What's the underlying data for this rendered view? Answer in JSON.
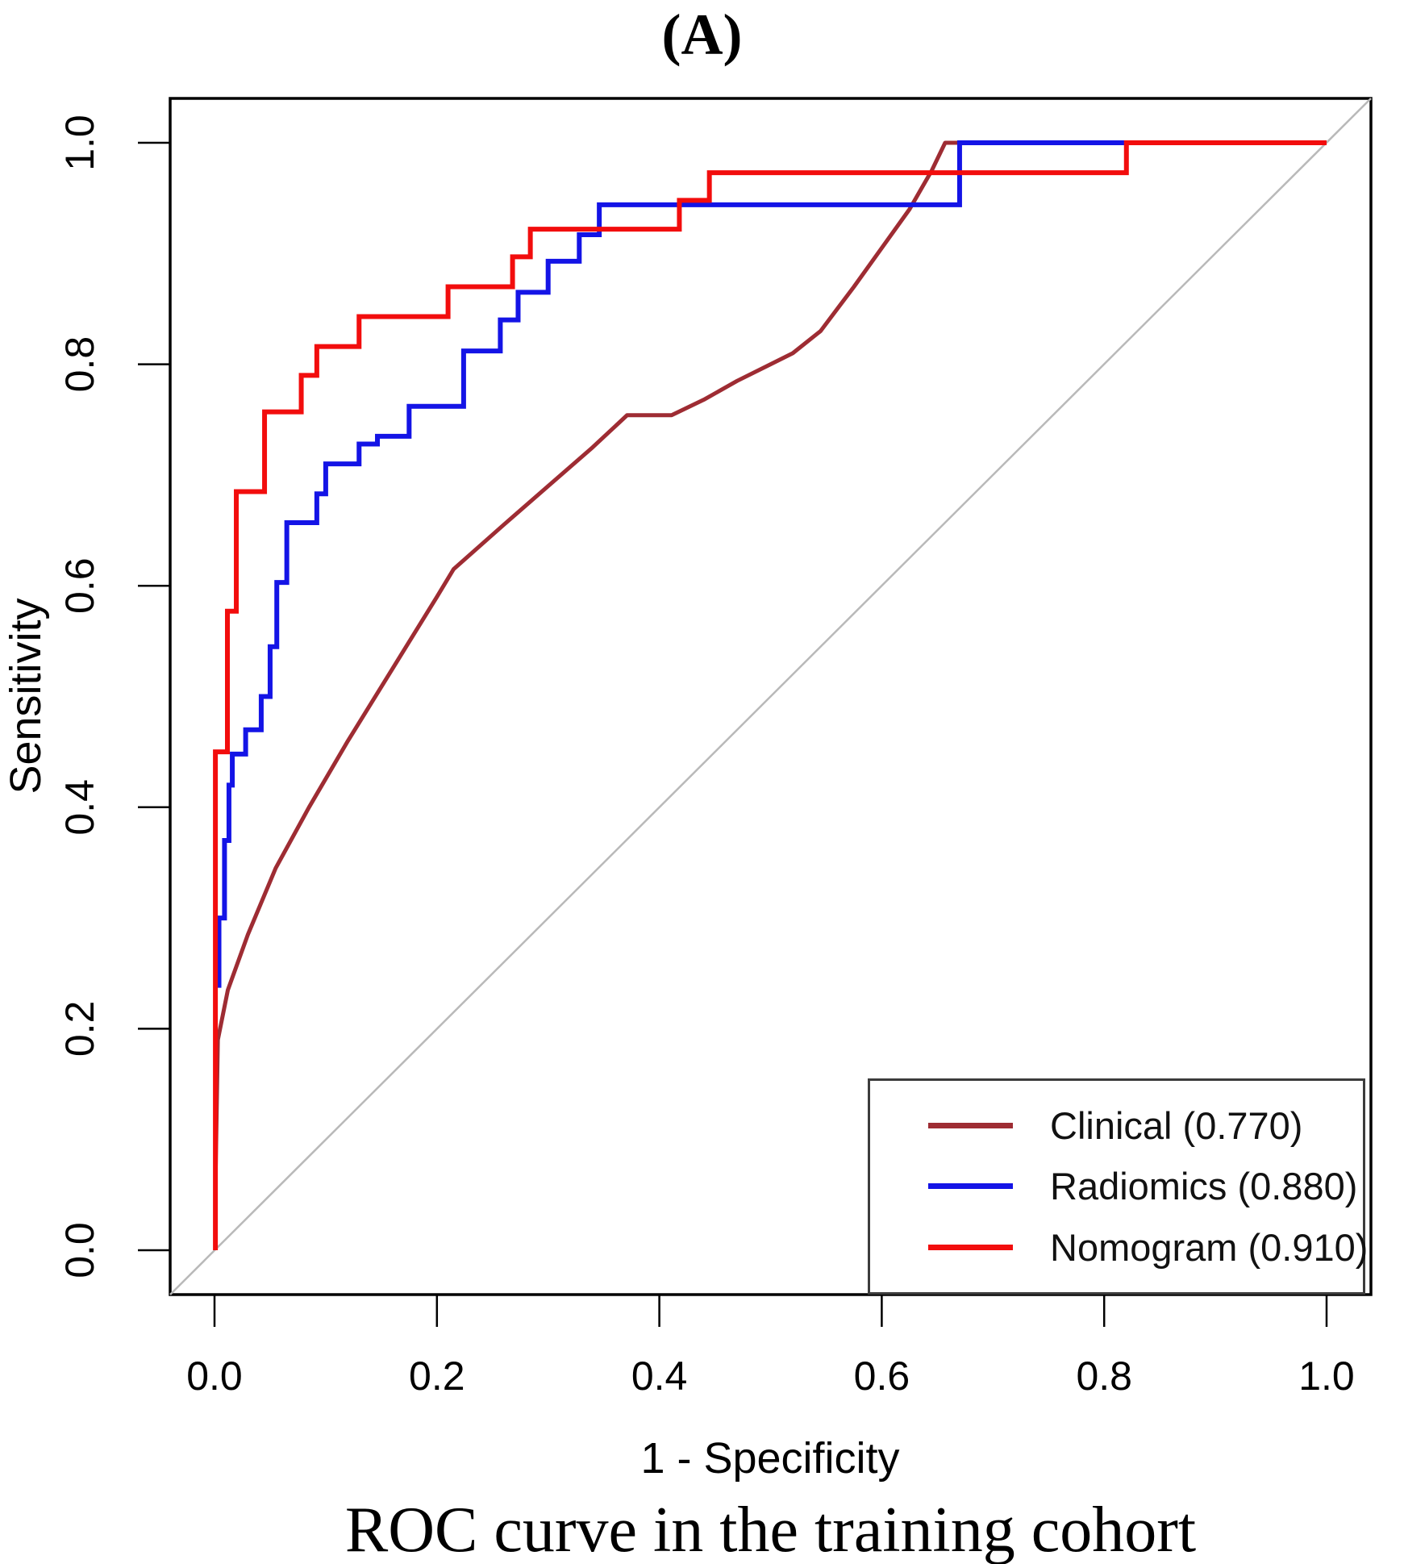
{
  "title": "(A)",
  "caption": "ROC curve in the training cohort",
  "colors": {
    "axis": "#000000",
    "diagonal_reference": "#b9b9b9",
    "background": "#ffffff",
    "legend_border": "#3c3c3c"
  },
  "chart_data": {
    "type": "line",
    "subtype": "roc-step-curves",
    "title": "(A)",
    "xlabel": "1 - Specificity",
    "ylabel": "Sensitivity",
    "xlim": [
      0,
      1
    ],
    "ylim": [
      0,
      1
    ],
    "grid": false,
    "diagonal_reference": true,
    "legend_position": "bottom-right",
    "xticks": [
      0.0,
      0.2,
      0.4,
      0.6,
      0.8,
      1.0
    ],
    "yticks": [
      0.0,
      0.2,
      0.4,
      0.6,
      0.8,
      1.0
    ],
    "xtick_labels": [
      "0.0",
      "0.2",
      "0.4",
      "0.6",
      "0.8",
      "1.0"
    ],
    "ytick_labels": [
      "0.0",
      "0.2",
      "0.4",
      "0.6",
      "0.8",
      "1.0"
    ],
    "series": [
      {
        "name": "Clinical (0.770)",
        "auc": 0.77,
        "color": "#9e2c33",
        "stroke_width": 5,
        "points": [
          [
            0.001,
            0.07
          ],
          [
            0.003,
            0.19
          ],
          [
            0.012,
            0.235
          ],
          [
            0.03,
            0.285
          ],
          [
            0.055,
            0.345
          ],
          [
            0.085,
            0.4
          ],
          [
            0.12,
            0.46
          ],
          [
            0.16,
            0.525
          ],
          [
            0.2,
            0.59
          ],
          [
            0.215,
            0.615
          ],
          [
            0.26,
            0.655
          ],
          [
            0.3,
            0.69
          ],
          [
            0.34,
            0.725
          ],
          [
            0.371,
            0.754
          ],
          [
            0.411,
            0.754
          ],
          [
            0.44,
            0.768
          ],
          [
            0.47,
            0.785
          ],
          [
            0.5,
            0.8
          ],
          [
            0.52,
            0.81
          ],
          [
            0.545,
            0.83
          ],
          [
            0.575,
            0.87
          ],
          [
            0.6,
            0.905
          ],
          [
            0.625,
            0.94
          ],
          [
            0.645,
            0.975
          ],
          [
            0.657,
            1.0
          ],
          [
            1.0,
            1.0
          ]
        ]
      },
      {
        "name": "Radiomics (0.880)",
        "auc": 0.88,
        "color": "#1414e6",
        "stroke_width": 6,
        "points": [
          [
            0.004,
            0.237
          ],
          [
            0.004,
            0.3
          ],
          [
            0.009,
            0.3
          ],
          [
            0.009,
            0.37
          ],
          [
            0.013,
            0.37
          ],
          [
            0.013,
            0.42
          ],
          [
            0.016,
            0.42
          ],
          [
            0.016,
            0.448
          ],
          [
            0.028,
            0.448
          ],
          [
            0.028,
            0.47
          ],
          [
            0.042,
            0.47
          ],
          [
            0.042,
            0.5
          ],
          [
            0.05,
            0.5
          ],
          [
            0.05,
            0.545
          ],
          [
            0.056,
            0.545
          ],
          [
            0.056,
            0.603
          ],
          [
            0.065,
            0.603
          ],
          [
            0.065,
            0.657
          ],
          [
            0.092,
            0.657
          ],
          [
            0.092,
            0.683
          ],
          [
            0.1,
            0.683
          ],
          [
            0.1,
            0.71
          ],
          [
            0.13,
            0.71
          ],
          [
            0.13,
            0.728
          ],
          [
            0.1465,
            0.728
          ],
          [
            0.1465,
            0.735
          ],
          [
            0.175,
            0.735
          ],
          [
            0.175,
            0.762
          ],
          [
            0.224,
            0.762
          ],
          [
            0.224,
            0.812
          ],
          [
            0.257,
            0.812
          ],
          [
            0.257,
            0.84
          ],
          [
            0.273,
            0.84
          ],
          [
            0.273,
            0.865
          ],
          [
            0.3,
            0.865
          ],
          [
            0.3,
            0.893
          ],
          [
            0.328,
            0.893
          ],
          [
            0.328,
            0.917
          ],
          [
            0.346,
            0.917
          ],
          [
            0.346,
            0.944
          ],
          [
            0.67,
            0.944
          ],
          [
            0.67,
            1.0
          ],
          [
            1.0,
            1.0
          ]
        ]
      },
      {
        "name": "Nomogram (0.910)",
        "auc": 0.91,
        "color": "#f20d0d",
        "stroke_width": 6,
        "points": [
          [
            0.0008,
            0.0
          ],
          [
            0.0008,
            0.45
          ],
          [
            0.0116,
            0.45
          ],
          [
            0.0116,
            0.577
          ],
          [
            0.0196,
            0.577
          ],
          [
            0.0196,
            0.685
          ],
          [
            0.045,
            0.685
          ],
          [
            0.045,
            0.757
          ],
          [
            0.078,
            0.757
          ],
          [
            0.078,
            0.79
          ],
          [
            0.092,
            0.79
          ],
          [
            0.092,
            0.816
          ],
          [
            0.13,
            0.816
          ],
          [
            0.13,
            0.843
          ],
          [
            0.21,
            0.843
          ],
          [
            0.21,
            0.87
          ],
          [
            0.268,
            0.87
          ],
          [
            0.268,
            0.897
          ],
          [
            0.284,
            0.897
          ],
          [
            0.284,
            0.922
          ],
          [
            0.418,
            0.922
          ],
          [
            0.418,
            0.948
          ],
          [
            0.445,
            0.948
          ],
          [
            0.445,
            0.973
          ],
          [
            0.82,
            0.973
          ],
          [
            0.82,
            1.0
          ],
          [
            1.0,
            1.0
          ]
        ]
      }
    ]
  }
}
